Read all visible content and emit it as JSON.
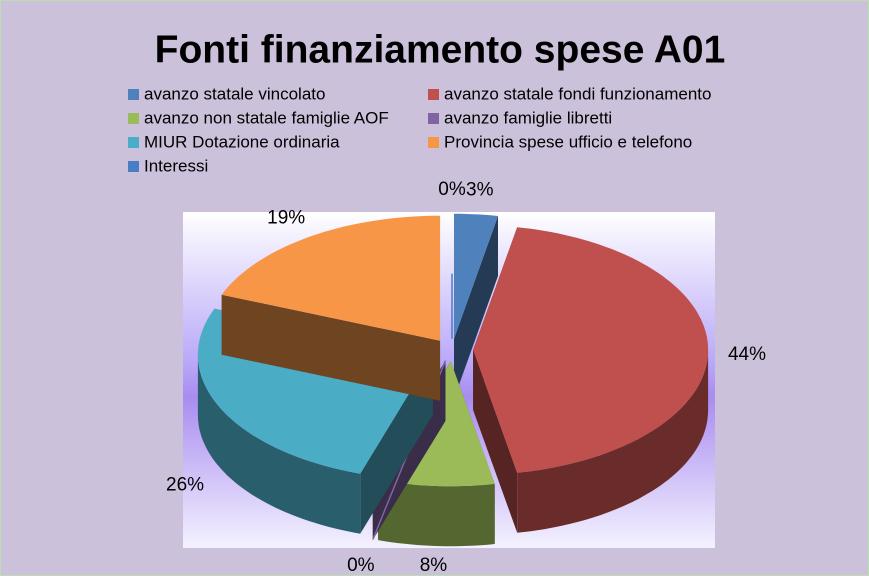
{
  "chart_data": {
    "type": "pie3d",
    "title": "Fonti finanziamento spese A01",
    "categories": [
      "avanzo statale vincolato",
      "avanzo statale fondi funzionamento",
      "avanzo non statale famiglie AOF",
      "avanzo famiglie libretti",
      "MIUR Dotazione ordinaria",
      "Provincia spese ufficio e telefono",
      "Interessi"
    ],
    "values": [
      3,
      44,
      8,
      0,
      26,
      19,
      0
    ],
    "value_labels": [
      "3%",
      "44%",
      "8%",
      "0%",
      "26%",
      "19%",
      "0%"
    ],
    "colors": [
      "#4f81bd",
      "#c0504d",
      "#9bbb59",
      "#8064a2",
      "#4bacc6",
      "#f79646",
      "#4a7ec4"
    ],
    "legend": "top"
  }
}
